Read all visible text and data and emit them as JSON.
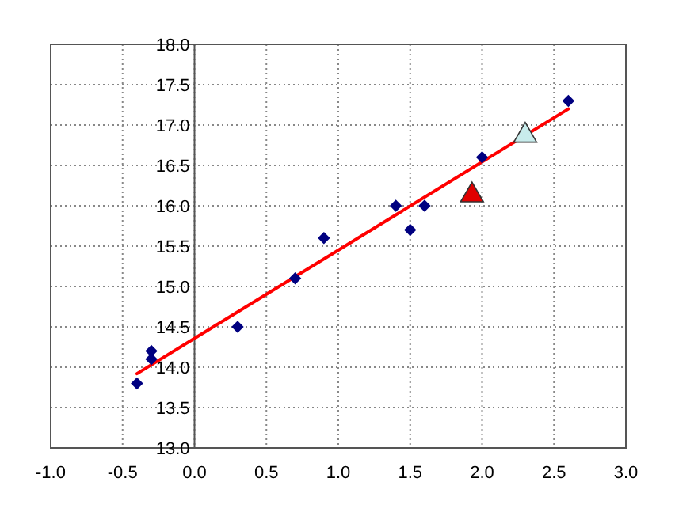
{
  "chart_data": {
    "type": "scatter",
    "xlim": [
      -1,
      3
    ],
    "ylim": [
      13,
      18
    ],
    "xticks": [
      {
        "value": -1,
        "label": "-1.0"
      },
      {
        "value": -0.5,
        "label": "-0.5"
      },
      {
        "value": 0,
        "label": "0.0"
      },
      {
        "value": 0.5,
        "label": "0.5"
      },
      {
        "value": 1,
        "label": "1.0"
      },
      {
        "value": 1.5,
        "label": "1.5"
      },
      {
        "value": 2,
        "label": "2.0"
      },
      {
        "value": 2.5,
        "label": "2.5"
      },
      {
        "value": 3,
        "label": "3.0"
      }
    ],
    "yticks": [
      {
        "value": 13,
        "label": "13.0"
      },
      {
        "value": 13.5,
        "label": "13.5"
      },
      {
        "value": 14,
        "label": "14.0"
      },
      {
        "value": 14.5,
        "label": "14.5"
      },
      {
        "value": 15,
        "label": "15.0"
      },
      {
        "value": 15.5,
        "label": "15.5"
      },
      {
        "value": 16,
        "label": "16.0"
      },
      {
        "value": 16.5,
        "label": "16.5"
      },
      {
        "value": 17,
        "label": "17.0"
      },
      {
        "value": 17.5,
        "label": "17.5"
      },
      {
        "value": 18,
        "label": "18.0"
      }
    ],
    "grid": true,
    "line_style": "solid",
    "series": [
      {
        "type": "line",
        "color": "#ff0000",
        "x": [
          -0.4,
          2.6
        ],
        "values": [
          13.92,
          17.2
        ]
      },
      {
        "color": "#000080",
        "marker": "diamond",
        "x": [
          -0.4,
          -0.3,
          -0.3,
          0.3,
          0.7,
          0.9,
          1.4,
          1.5,
          1.6,
          2.0,
          2.6
        ],
        "values": [
          13.8,
          14.2,
          14.1,
          14.5,
          15.1,
          15.6,
          16.0,
          15.7,
          16.0,
          16.6,
          17.3
        ]
      },
      {
        "color": "#e00000",
        "marker": "triangle",
        "x": [
          1.93
        ],
        "values": [
          16.13
        ]
      },
      {
        "color": "#c8ecec",
        "marker": "triangle",
        "x": [
          2.3
        ],
        "values": [
          16.87
        ]
      }
    ]
  }
}
